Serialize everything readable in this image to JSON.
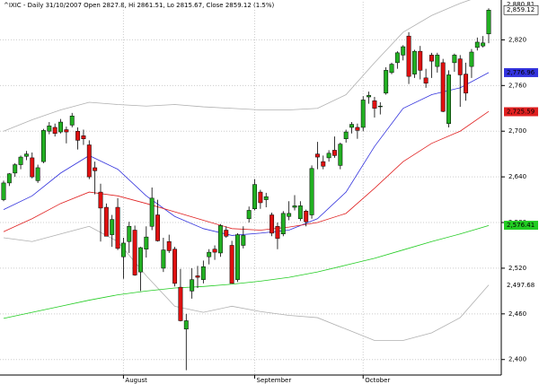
{
  "chart_data": {
    "type": "candlestick",
    "title": "^IXIC - Daily 31/10/2007 Open 2827.8, Hi 2861.51, Lo 2815.67, Close 2859.12 (1.5%)",
    "categories": [
      null,
      null,
      null,
      null,
      null,
      null,
      null,
      null,
      null,
      null,
      null,
      null,
      null,
      null,
      null,
      null,
      null,
      null,
      null,
      null,
      null,
      "August",
      null,
      null,
      null,
      null,
      null,
      null,
      null,
      null,
      null,
      null,
      null,
      null,
      null,
      null,
      null,
      null,
      null,
      null,
      null,
      null,
      null,
      null,
      "September",
      null,
      null,
      null,
      null,
      null,
      null,
      null,
      null,
      null,
      null,
      null,
      null,
      null,
      null,
      null,
      null,
      null,
      null,
      "October",
      null,
      null,
      null,
      null,
      null,
      null,
      null,
      null,
      null,
      null,
      null,
      null,
      null,
      null,
      null,
      null,
      null,
      null,
      null,
      null,
      null,
      null
    ],
    "open": [
      2610,
      2632,
      2645,
      2656,
      2667,
      2665,
      2635,
      2660,
      2700,
      2705,
      2699,
      2702,
      2708,
      2700,
      2694,
      2682,
      2652,
      2620,
      2600,
      2564,
      2600,
      2535,
      2555,
      2570,
      2515,
      2545,
      2575,
      2590,
      2520,
      2555,
      2545,
      2495,
      2440,
      2490,
      2510,
      2505,
      2535,
      2545,
      2540,
      2570,
      2550,
      2505,
      2550,
      2585,
      2598,
      2620,
      2610,
      2590,
      2575,
      2565,
      2588,
      2600,
      2585,
      2595,
      2590,
      2670,
      2660,
      2665,
      2675,
      2655,
      2690,
      2705,
      2705,
      2705,
      2745,
      2740,
      2733,
      2750,
      2777,
      2790,
      2800,
      2825,
      2775,
      2805,
      2770,
      2800,
      2785,
      2790,
      2710,
      2790,
      2795,
      2775,
      2785,
      2810,
      2812,
      2827.8
    ],
    "high": [
      2635,
      2645,
      2658,
      2668,
      2674,
      2672,
      2656,
      2703,
      2712,
      2710,
      2716,
      2706,
      2724,
      2705,
      2702,
      2688,
      2660,
      2631,
      2605,
      2590,
      2612,
      2560,
      2581,
      2576,
      2548,
      2575,
      2626,
      2610,
      2560,
      2564,
      2548,
      2519,
      2460,
      2520,
      2523,
      2530,
      2545,
      2550,
      2578,
      2575,
      2556,
      2566,
      2575,
      2601,
      2637,
      2623,
      2619,
      2593,
      2580,
      2595,
      2608,
      2616,
      2608,
      2597,
      2655,
      2686,
      2668,
      2675,
      2693,
      2685,
      2702,
      2712,
      2710,
      2746,
      2752,
      2745,
      2738,
      2784,
      2790,
      2805,
      2813,
      2830,
      2807,
      2812,
      2782,
      2803,
      2803,
      2795,
      2780,
      2802,
      2800,
      2790,
      2808,
      2823,
      2825,
      2861.51
    ],
    "low": [
      2608,
      2628,
      2640,
      2650,
      2662,
      2638,
      2632,
      2658,
      2696,
      2693,
      2697,
      2684,
      2705,
      2676,
      2682,
      2637,
      2617,
      2555,
      2562,
      2548,
      2544,
      2506,
      2540,
      2510,
      2490,
      2534,
      2570,
      2555,
      2515,
      2540,
      2496,
      2450,
      2386,
      2480,
      2494,
      2500,
      2525,
      2531,
      2535,
      2560,
      2500,
      2502,
      2546,
      2580,
      2596,
      2598,
      2600,
      2562,
      2545,
      2562,
      2583,
      2596,
      2582,
      2575,
      2585,
      2650,
      2650,
      2660,
      2665,
      2650,
      2685,
      2697,
      2690,
      2700,
      2736,
      2718,
      2722,
      2748,
      2775,
      2782,
      2793,
      2762,
      2770,
      2768,
      2757,
      2770,
      2777,
      2725,
      2705,
      2778,
      2732,
      2740,
      2770,
      2806,
      2810,
      2815.67
    ],
    "close": [
      2632,
      2644,
      2656,
      2666,
      2670,
      2640,
      2652,
      2701,
      2707,
      2697,
      2712,
      2699,
      2720,
      2688,
      2690,
      2640,
      2648,
      2599,
      2562,
      2584,
      2546,
      2553,
      2575,
      2511,
      2547,
      2561,
      2612,
      2556,
      2544,
      2543,
      2500,
      2451,
      2451,
      2505,
      2508,
      2522,
      2541,
      2541,
      2576,
      2562,
      2500,
      2564,
      2563,
      2596,
      2630,
      2606,
      2614,
      2566,
      2559,
      2592,
      2592,
      2602,
      2602,
      2581,
      2651,
      2666,
      2654,
      2671,
      2668,
      2683,
      2699,
      2709,
      2701,
      2741,
      2747,
      2730,
      2733,
      2780,
      2788,
      2803,
      2811,
      2772,
      2805,
      2780,
      2763,
      2792,
      2800,
      2726,
      2774,
      2800,
      2774,
      2750,
      2804,
      2817,
      2816,
      2859.12
    ],
    "up_color": "#22b022",
    "down_color": "#e01010",
    "line_x": [
      0,
      5,
      10,
      15,
      20,
      25,
      30,
      35,
      40,
      45,
      50,
      55,
      60,
      65,
      70,
      75,
      80,
      85
    ],
    "lines": [
      {
        "color": "#b0b0b0",
        "values": [
          2700,
          2715,
          2728,
          2738,
          2735,
          2733,
          2735,
          2732,
          2730,
          2728,
          2728,
          2730,
          2748,
          2790,
          2830,
          2852,
          2868,
          2881
        ]
      },
      {
        "color": "#b0b0b0",
        "values": [
          2560,
          2555,
          2565,
          2575,
          2555,
          2510,
          2470,
          2462,
          2470,
          2463,
          2458,
          2455,
          2440,
          2425,
          2425,
          2435,
          2455,
          2498
        ]
      },
      {
        "color": "#3333dd",
        "values": [
          2597,
          2615,
          2645,
          2668,
          2650,
          2615,
          2588,
          2572,
          2563,
          2566,
          2570,
          2585,
          2620,
          2680,
          2730,
          2748,
          2757,
          2777
        ]
      },
      {
        "color": "#e02020",
        "values": [
          2568,
          2585,
          2605,
          2620,
          2615,
          2605,
          2594,
          2583,
          2572,
          2570,
          2574,
          2580,
          2592,
          2625,
          2660,
          2684,
          2700,
          2726
        ]
      },
      {
        "color": "#22cc22",
        "values": [
          2454,
          2462,
          2470,
          2478,
          2485,
          2490,
          2494,
          2496,
          2499,
          2503,
          2508,
          2515,
          2524,
          2533,
          2544,
          2555,
          2565,
          2576
        ]
      }
    ],
    "ylim": [
      2382,
      2870
    ],
    "yticks": [
      {
        "value": 2400,
        "label": "2,400"
      },
      {
        "value": 2460,
        "label": "2,460"
      },
      {
        "value": 2520,
        "label": "2,520"
      },
      {
        "value": 2580,
        "label": "2,580"
      },
      {
        "value": 2640,
        "label": "2,640"
      },
      {
        "value": 2700,
        "label": "2,700"
      },
      {
        "value": 2760,
        "label": "2,760"
      },
      {
        "value": 2820,
        "label": "2,820"
      }
    ],
    "price_labels": [
      {
        "value": 2880.81,
        "label": "2,880.81",
        "color": "#ffffff"
      },
      {
        "value": 2859.12,
        "label": "2,859.12",
        "color": "#ffffff"
      },
      {
        "value": 2776.96,
        "label": "2,776.96",
        "color": "#3333dd"
      },
      {
        "value": 2725.59,
        "label": "2,725.59",
        "color": "#e02020"
      },
      {
        "value": 2576.41,
        "label": "2,576.41",
        "color": "#22cc22"
      },
      {
        "value": 2497.68,
        "label": "2,497.68",
        "color": "#ffffff"
      }
    ],
    "grid": true
  }
}
